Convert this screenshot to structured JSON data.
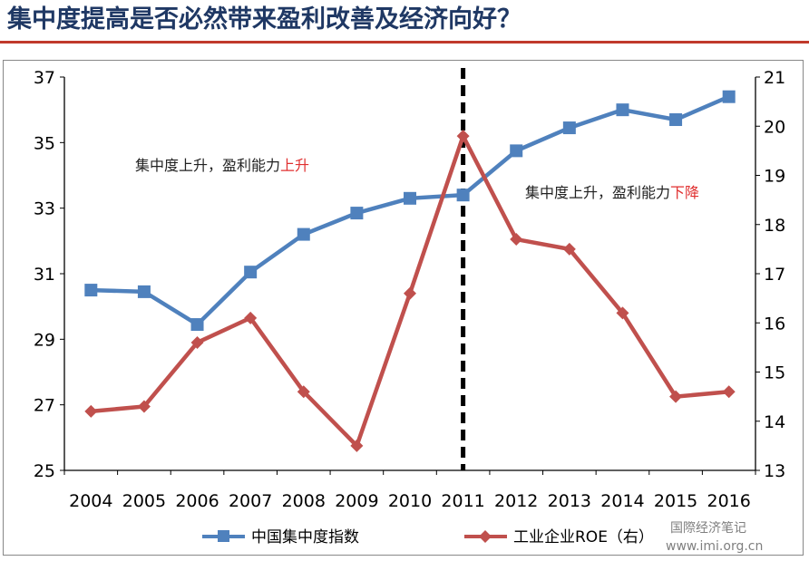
{
  "slide": {
    "title": "集中度提高是否必然带来盈利改善及经济向好？"
  },
  "colors": {
    "title": "#1f3864",
    "rule": "#c0392b",
    "series_blue": "#4f81bd",
    "series_red": "#c0504d",
    "highlight_red": "#e03030",
    "divider": "#000000"
  },
  "chart_data": {
    "type": "line",
    "x": [
      "2004",
      "2005",
      "2006",
      "2007",
      "2008",
      "2009",
      "2010",
      "2011",
      "2012",
      "2013",
      "2014",
      "2015",
      "2016"
    ],
    "series": [
      {
        "name": "中国集中度指数",
        "axis": "left",
        "color": "#4f81bd",
        "marker": "square",
        "values": [
          30.5,
          30.45,
          29.45,
          31.05,
          32.2,
          32.85,
          33.3,
          33.4,
          34.75,
          35.45,
          36.0,
          35.7,
          36.4
        ]
      },
      {
        "name": "工业企业ROE（右）",
        "axis": "right",
        "color": "#c0504d",
        "marker": "diamond",
        "values": [
          14.2,
          14.3,
          15.6,
          16.1,
          14.6,
          13.5,
          16.6,
          19.8,
          17.7,
          17.5,
          16.2,
          14.5,
          14.6
        ]
      }
    ],
    "y_left": {
      "min": 25,
      "max": 37,
      "ticks": [
        "25",
        "27",
        "29",
        "31",
        "33",
        "35",
        "37"
      ]
    },
    "y_right": {
      "min": 13,
      "max": 21,
      "ticks": [
        "13",
        "14",
        "15",
        "16",
        "17",
        "18",
        "19",
        "20",
        "21"
      ]
    },
    "divider_x": "2011",
    "annotations": [
      {
        "id": "left",
        "prefix": "集中度上升，盈利能力",
        "highlight": "上升"
      },
      {
        "id": "right",
        "prefix": "集中度上升，盈利能力",
        "highlight": "下降"
      }
    ],
    "grid": false,
    "legend_position": "bottom"
  },
  "watermark": {
    "line1": "国際经济笔记",
    "line2": "www.imi.org.cn"
  }
}
